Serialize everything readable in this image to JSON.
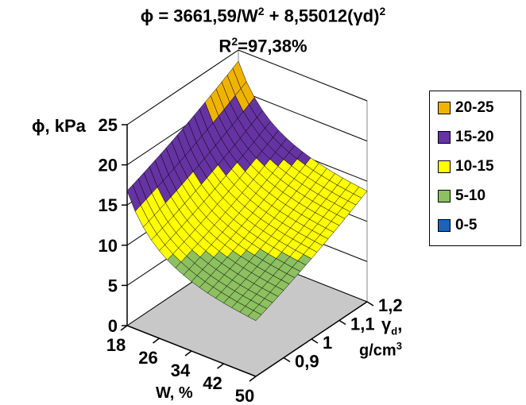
{
  "chart_data": {
    "type": "surface",
    "title_line1": "ϕ = 3661,59/W",
    "title_exp1": "2",
    "title_mid": " + 8,55012(γd)",
    "title_exp2": "2",
    "title_line2_prefix": "R",
    "title_line2_exp": "2",
    "title_line2_rest": "=97,38%",
    "zlabel": "ϕ, kPa",
    "xlabel": "W, %",
    "ylabel_symbol": "γ",
    "ylabel_sub": "d",
    "ylabel_unit_prefix": "g/cm",
    "ylabel_unit_exp": "3",
    "z_ticks": [
      "0",
      "5",
      "10",
      "15",
      "20",
      "25"
    ],
    "x_ticks": [
      "18",
      "26",
      "34",
      "42",
      "50"
    ],
    "y_ticks": [
      "0,9",
      "1",
      "1,1",
      "1,2"
    ],
    "x_range": [
      18,
      50
    ],
    "y_range": [
      0.8,
      1.2
    ],
    "z_range": [
      0,
      25
    ],
    "formula": {
      "a": 3661.59,
      "b": 8.55012
    },
    "legend": [
      {
        "label": "20-25",
        "color": "#f0b400"
      },
      {
        "label": "15-20",
        "color": "#6633a3"
      },
      {
        "label": "10-15",
        "color": "#ffff00"
      },
      {
        "label": "5-10",
        "color": "#8cc060"
      },
      {
        "label": "0-5",
        "color": "#1f62b8"
      }
    ],
    "floor_color": "#c8c8c8"
  }
}
